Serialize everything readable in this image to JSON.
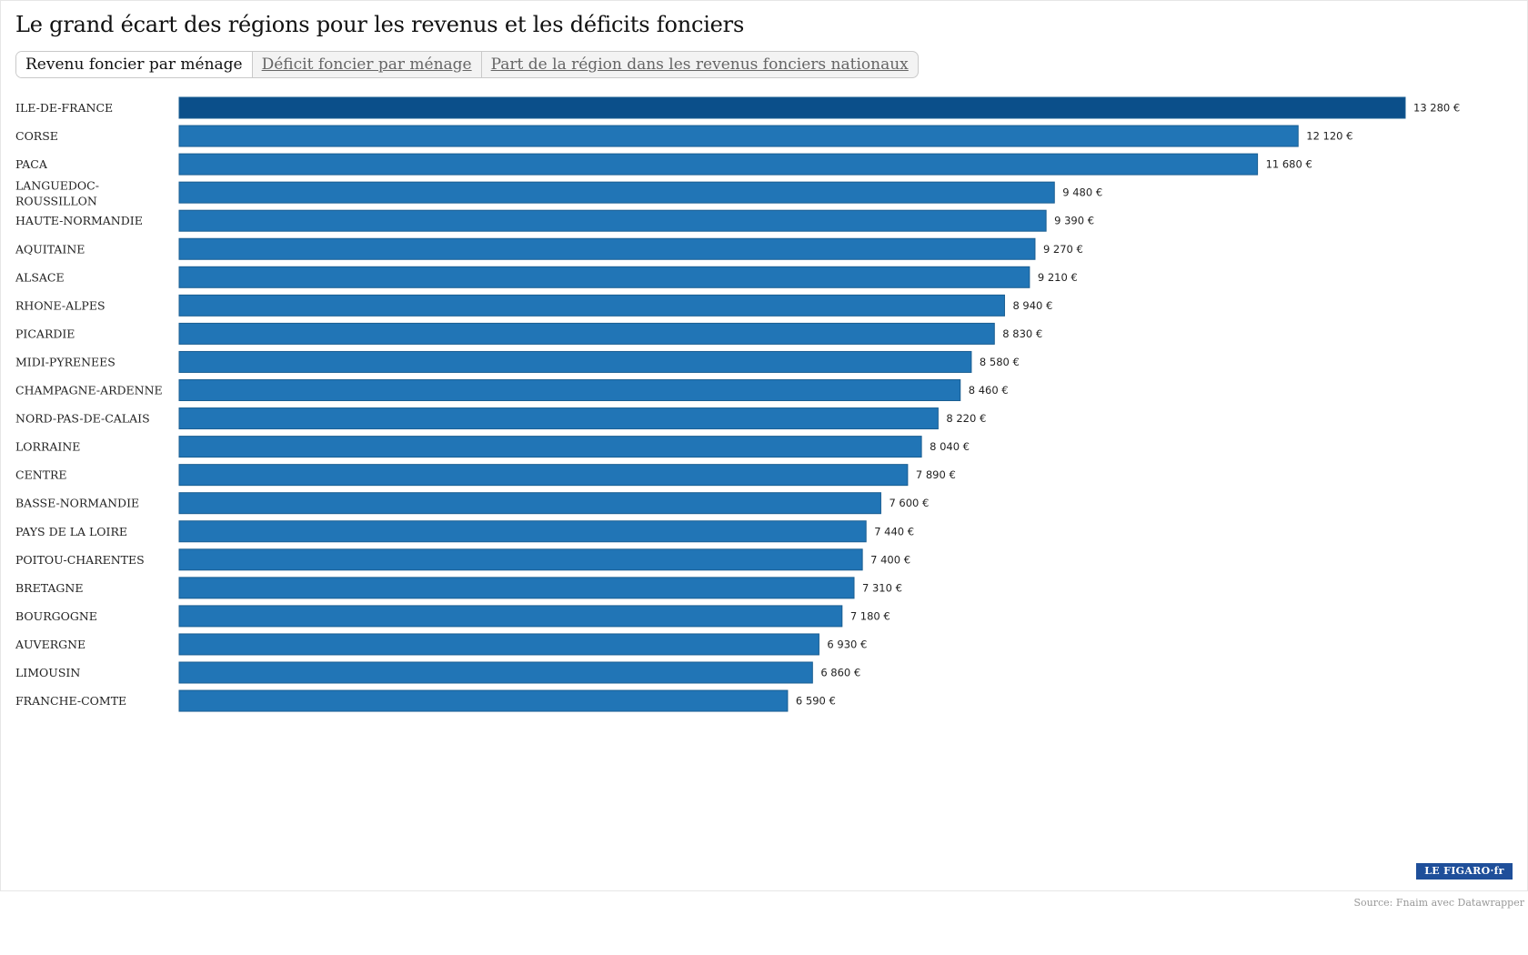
{
  "title": "Le grand écart des régions pour les revenus et les déficits fonciers",
  "tabs": [
    {
      "label": "Revenu foncier par ménage",
      "active": true
    },
    {
      "label": "Déficit foncier par ménage",
      "active": false
    },
    {
      "label": "Part de la région dans les revenus fonciers nationaux",
      "active": false
    }
  ],
  "colors": {
    "bar": "#2175b6",
    "bar_highlight": "#0b4f8a",
    "bar_border": "#1a5e92"
  },
  "chart_data": {
    "type": "bar",
    "orientation": "horizontal",
    "title": "Le grand écart des régions pour les revenus et les déficits fonciers",
    "unit": "€",
    "highlight_index": 0,
    "categories": [
      "ILE-DE-FRANCE",
      "CORSE",
      "PACA",
      "LANGUEDOC-ROUSSILLON",
      "HAUTE-NORMANDIE",
      "AQUITAINE",
      "ALSACE",
      "RHONE-ALPES",
      "PICARDIE",
      "MIDI-PYRENEES",
      "CHAMPAGNE-ARDENNE",
      "NORD-PAS-DE-CALAIS",
      "LORRAINE",
      "CENTRE",
      "BASSE-NORMANDIE",
      "PAYS DE LA LOIRE",
      "POITOU-CHARENTES",
      "BRETAGNE",
      "BOURGOGNE",
      "AUVERGNE",
      "LIMOUSIN",
      "FRANCHE-COMTE"
    ],
    "values": [
      13280,
      12120,
      11680,
      9480,
      9390,
      9270,
      9210,
      8940,
      8830,
      8580,
      8460,
      8220,
      8040,
      7890,
      7600,
      7440,
      7400,
      7310,
      7180,
      6930,
      6860,
      6590
    ],
    "value_labels": [
      "13 280 €",
      "12 120 €",
      "11 680 €",
      "9 480 €",
      "9 390 €",
      "9 270 €",
      "9 210 €",
      "8 940 €",
      "8 830 €",
      "8 580 €",
      "8 460 €",
      "8 220 €",
      "8 040 €",
      "7 890 €",
      "7 600 €",
      "7 440 €",
      "7 400 €",
      "7 310 €",
      "7 180 €",
      "6 930 €",
      "6 860 €",
      "6 590 €"
    ],
    "xlim": [
      0,
      13280
    ]
  },
  "logo_text": "LE FIGARO·fr",
  "source": "Source: Fnaim avec Datawrapper"
}
